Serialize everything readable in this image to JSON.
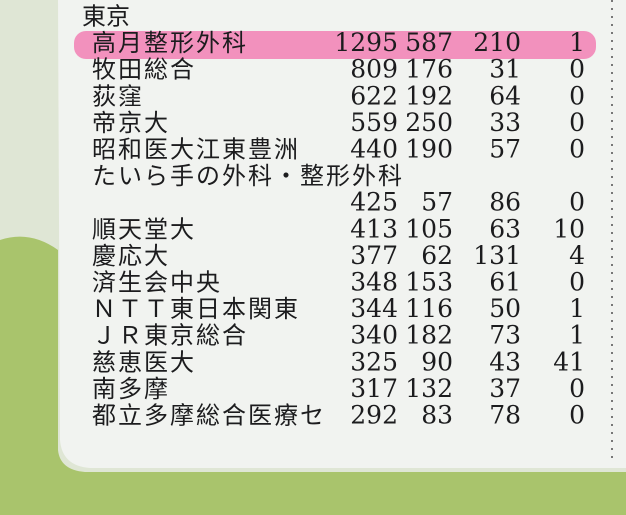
{
  "section": "東京",
  "rows": [
    {
      "name": "高月整形外科",
      "values": [
        1295,
        587,
        210,
        1
      ]
    },
    {
      "name": "牧田総合",
      "values": [
        809,
        176,
        31,
        0
      ]
    },
    {
      "name": "荻窪",
      "values": [
        622,
        192,
        64,
        0
      ]
    },
    {
      "name": "帝京大",
      "values": [
        559,
        250,
        33,
        0
      ]
    },
    {
      "name": "昭和医大江東豊洲",
      "values": [
        440,
        190,
        57,
        0
      ]
    },
    {
      "name": "たいら手の外科・整形外科",
      "values": [
        425,
        57,
        86,
        0
      ]
    },
    {
      "name": "順天堂大",
      "values": [
        413,
        105,
        63,
        10
      ]
    },
    {
      "name": "慶応大",
      "values": [
        377,
        62,
        131,
        4
      ]
    },
    {
      "name": "済生会中央",
      "values": [
        348,
        153,
        61,
        0
      ]
    },
    {
      "name": "ＮＴＴ東日本関東",
      "values": [
        344,
        116,
        50,
        1
      ]
    },
    {
      "name": "ＪＲ東京総合",
      "values": [
        340,
        182,
        73,
        1
      ]
    },
    {
      "name": "慈恵医大",
      "values": [
        325,
        90,
        43,
        41
      ]
    },
    {
      "name": "南多摩",
      "values": [
        317,
        132,
        37,
        0
      ]
    },
    {
      "name": "都立多摩総合医療セ",
      "values": [
        292,
        83,
        78,
        0
      ]
    }
  ]
}
